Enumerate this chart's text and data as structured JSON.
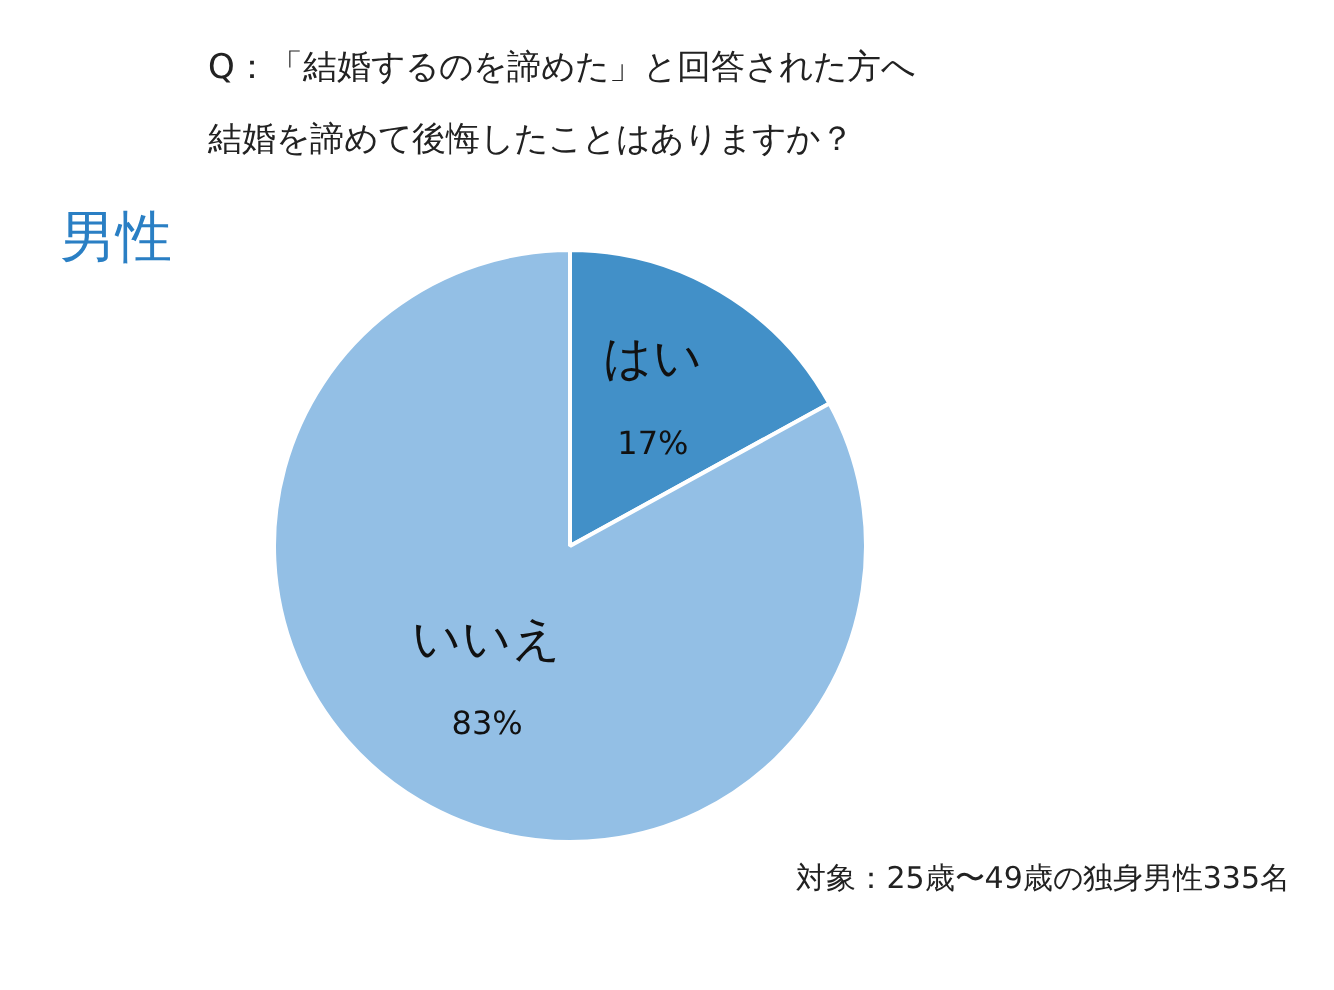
{
  "chart_data": {
    "type": "pie",
    "title": "Q：「結婚するのを諦めた」と回答された方へ",
    "subtitle": "結婚を諦めて後悔したことはありますか？",
    "categories": [
      "はい",
      "いいえ"
    ],
    "values": [
      17,
      83
    ],
    "value_labels": [
      "17%",
      "83%"
    ],
    "colors": [
      "#4290c8",
      "#93bfe5"
    ],
    "legend": false,
    "annotations": [
      "男性",
      "対象：25歳〜49歳の独身男性335名"
    ]
  }
}
